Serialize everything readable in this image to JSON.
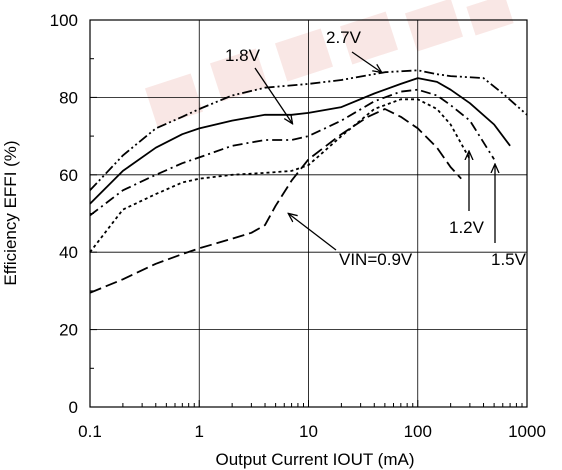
{
  "chart_data": {
    "type": "line",
    "xlabel": "Output Current IOUT (mA)",
    "ylabel": "Efficiency EFFI (%)",
    "x_scale": "log",
    "xlim": [
      0.1,
      1000
    ],
    "ylim": [
      0,
      100
    ],
    "x_ticks": [
      {
        "value": 0.1,
        "label": "0.1"
      },
      {
        "value": 1,
        "label": "1"
      },
      {
        "value": 10,
        "label": "10"
      },
      {
        "value": 100,
        "label": "100"
      },
      {
        "value": 1000,
        "label": "1000"
      }
    ],
    "y_ticks": [
      {
        "value": 0,
        "label": "0"
      },
      {
        "value": 20,
        "label": "20"
      },
      {
        "value": 40,
        "label": "40"
      },
      {
        "value": 60,
        "label": "60"
      },
      {
        "value": 80,
        "label": "80"
      },
      {
        "value": 100,
        "label": "100"
      }
    ],
    "grid": true,
    "series": [
      {
        "name": "VIN=0.9V",
        "dash": "long-dash",
        "points": [
          [
            0.1,
            29.5
          ],
          [
            0.2,
            33
          ],
          [
            0.4,
            37
          ],
          [
            0.7,
            39.5
          ],
          [
            1,
            41
          ],
          [
            2,
            43.5
          ],
          [
            3,
            45
          ],
          [
            4,
            47
          ],
          [
            5,
            52
          ],
          [
            7,
            58.5
          ],
          [
            10,
            64
          ],
          [
            20,
            70.5
          ],
          [
            35,
            75
          ],
          [
            50,
            77
          ],
          [
            70,
            75
          ],
          [
            100,
            72
          ],
          [
            150,
            67
          ],
          [
            200,
            62
          ],
          [
            250,
            59
          ]
        ]
      },
      {
        "name": "1.2V",
        "dash": "short-dot",
        "points": [
          [
            0.1,
            40
          ],
          [
            0.2,
            51
          ],
          [
            0.4,
            55
          ],
          [
            0.7,
            58
          ],
          [
            1,
            59
          ],
          [
            2,
            60
          ],
          [
            4,
            60.5
          ],
          [
            7,
            61
          ],
          [
            10,
            62.5
          ],
          [
            20,
            70
          ],
          [
            40,
            77
          ],
          [
            70,
            79.5
          ],
          [
            100,
            79.5
          ],
          [
            150,
            77
          ],
          [
            200,
            73
          ],
          [
            300,
            64
          ]
        ]
      },
      {
        "name": "1.5V",
        "dash": "dash-dot",
        "points": [
          [
            0.1,
            49.5
          ],
          [
            0.2,
            56
          ],
          [
            0.4,
            60
          ],
          [
            0.7,
            63
          ],
          [
            1,
            64.5
          ],
          [
            2,
            67.5
          ],
          [
            4,
            69
          ],
          [
            7,
            69
          ],
          [
            10,
            70
          ],
          [
            20,
            74
          ],
          [
            40,
            79
          ],
          [
            70,
            81.5
          ],
          [
            100,
            82
          ],
          [
            150,
            80.5
          ],
          [
            200,
            78
          ],
          [
            300,
            74
          ],
          [
            500,
            64
          ]
        ]
      },
      {
        "name": "1.8V",
        "dash": "solid",
        "points": [
          [
            0.1,
            52.5
          ],
          [
            0.2,
            61
          ],
          [
            0.4,
            67
          ],
          [
            0.7,
            70.5
          ],
          [
            1,
            72
          ],
          [
            2,
            74
          ],
          [
            4,
            75.5
          ],
          [
            7,
            75.5
          ],
          [
            10,
            76
          ],
          [
            20,
            77.5
          ],
          [
            40,
            81
          ],
          [
            70,
            83.5
          ],
          [
            100,
            85
          ],
          [
            150,
            84
          ],
          [
            200,
            82
          ],
          [
            300,
            78.5
          ],
          [
            500,
            73
          ],
          [
            700,
            67.5
          ]
        ]
      },
      {
        "name": "2.7V",
        "dash": "dash-dot-dot",
        "points": [
          [
            0.1,
            56
          ],
          [
            0.2,
            65
          ],
          [
            0.4,
            72
          ],
          [
            0.7,
            75
          ],
          [
            1,
            77
          ],
          [
            2,
            80.5
          ],
          [
            4,
            82.5
          ],
          [
            10,
            83.5
          ],
          [
            20,
            84.5
          ],
          [
            50,
            86.5
          ],
          [
            100,
            87
          ],
          [
            150,
            86
          ],
          [
            200,
            85.5
          ],
          [
            400,
            85
          ],
          [
            600,
            81
          ],
          [
            1000,
            75.5
          ]
        ]
      }
    ],
    "annotations": [
      {
        "text": "2.7V",
        "target": [
          40,
          86.5
        ]
      },
      {
        "text": "1.8V",
        "target": [
          7,
          75
        ]
      },
      {
        "text": "1.2V",
        "target": [
          300,
          65
        ]
      },
      {
        "text": "1.5V",
        "target": [
          500,
          63
        ]
      },
      {
        "text": "VIN=0.9V",
        "target": [
          7,
          49
        ]
      }
    ]
  }
}
